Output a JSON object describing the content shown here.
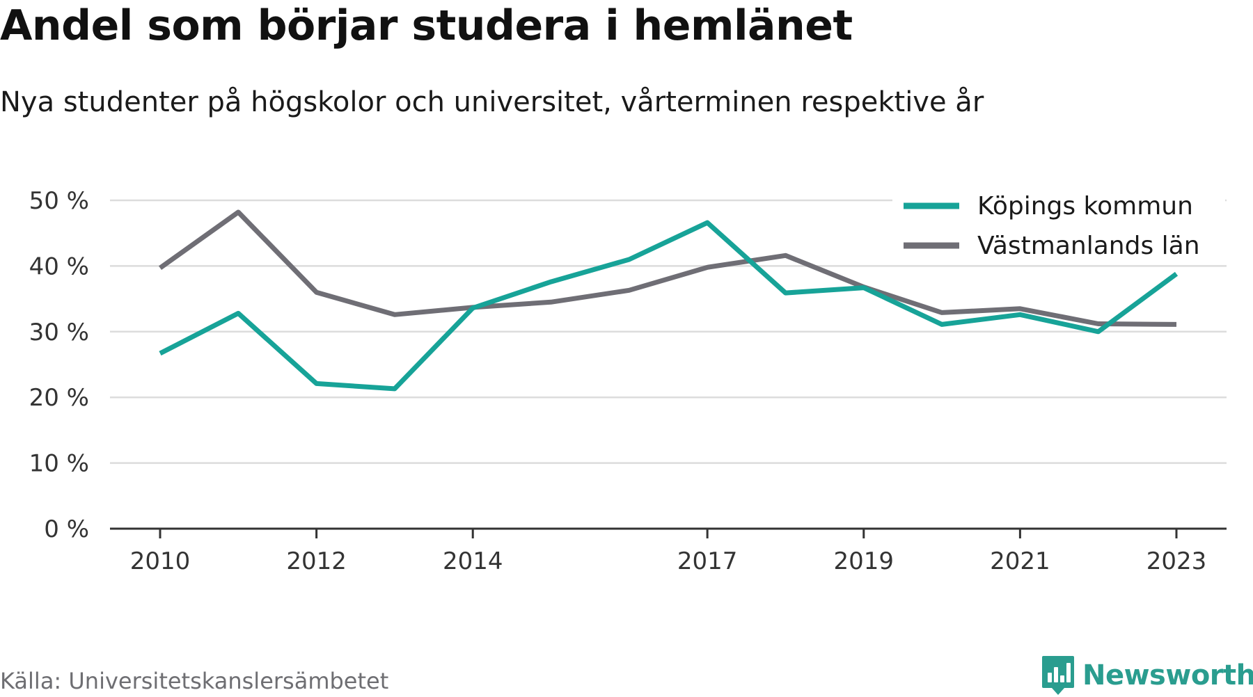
{
  "header": {
    "title": "Andel som börjar studera i hemlänet",
    "subtitle": "Nya studenter på högskolor och universitet, vårterminen respektive år"
  },
  "footer": {
    "source": "Källa: Universitetskanslersämbetet",
    "brand": "Newsworthy"
  },
  "colors": {
    "kopings": "#17a398",
    "vastmanland": "#6f6e75",
    "grid": "#dcdcdc",
    "axis": "#333333",
    "brand": "#2a9d8f"
  },
  "chart_data": {
    "type": "line",
    "title": "Andel som börjar studera i hemlänet",
    "subtitle": "Nya studenter på högskolor och universitet, vårterminen respektive år",
    "x": [
      2010,
      2011,
      2012,
      2013,
      2014,
      2015,
      2016,
      2017,
      2018,
      2019,
      2020,
      2021,
      2022,
      2023
    ],
    "x_tick_labels": [
      "2010",
      "2012",
      "2014",
      "2017",
      "2019",
      "2021",
      "2023"
    ],
    "y_tick_labels": [
      "0 %",
      "10 %",
      "20 %",
      "30 %",
      "40 %",
      "50 %"
    ],
    "ylim": [
      0,
      50
    ],
    "grid": true,
    "legend_position": "top-right",
    "series": [
      {
        "name": "Köpings kommun",
        "color": "#17a398",
        "values": [
          26.7,
          32.8,
          22.1,
          21.3,
          33.6,
          37.6,
          41.0,
          46.6,
          35.9,
          36.7,
          31.1,
          32.6,
          30.0,
          38.8
        ]
      },
      {
        "name": "Västmanlands län",
        "color": "#6f6e75",
        "values": [
          39.7,
          48.2,
          36.0,
          32.6,
          33.7,
          34.5,
          36.3,
          39.8,
          41.6,
          36.8,
          32.9,
          33.5,
          31.2,
          31.1
        ]
      }
    ]
  }
}
